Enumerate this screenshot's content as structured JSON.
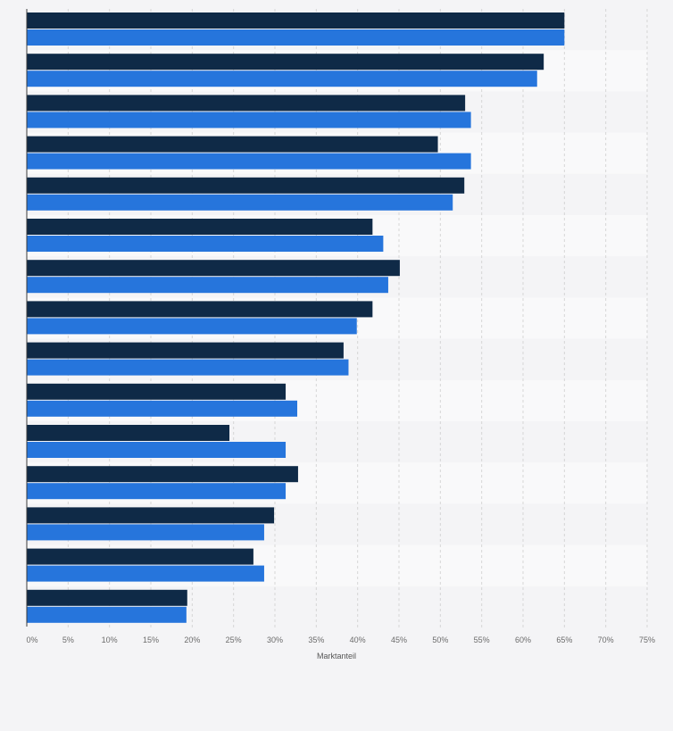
{
  "chart_data": {
    "type": "bar",
    "orientation": "horizontal",
    "categories": [
      "",
      "",
      "",
      "",
      "",
      "",
      "",
      "",
      "",
      "",
      "",
      "",
      "",
      "",
      ""
    ],
    "series": [
      {
        "color": "#0f2a47",
        "values": [
          65,
          62.5,
          53,
          49.7,
          52.9,
          41.8,
          45.1,
          41.8,
          38.3,
          31.3,
          24.5,
          32.8,
          29.9,
          27.4,
          19.4
        ]
      },
      {
        "color": "#2675dc",
        "values": [
          65,
          61.7,
          53.7,
          53.7,
          51.5,
          43.1,
          43.7,
          39.9,
          38.9,
          32.7,
          31.3,
          31.3,
          28.7,
          28.7,
          19.3
        ]
      }
    ],
    "xlim": [
      0,
      75
    ],
    "xticks": [
      "0%",
      "5%",
      "10%",
      "15%",
      "20%",
      "25%",
      "30%",
      "35%",
      "40%",
      "45%",
      "50%",
      "55%",
      "60%",
      "65%",
      "70%",
      "75%"
    ],
    "xlabel": "Marktanteil",
    "grid": true,
    "legend": "none"
  }
}
